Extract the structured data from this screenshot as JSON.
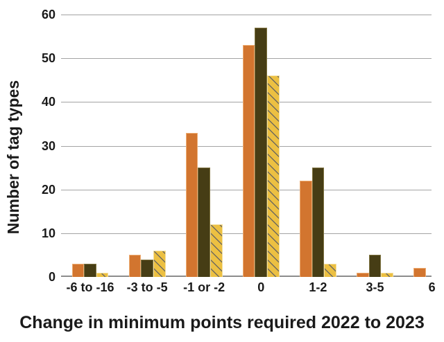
{
  "chart_data": {
    "type": "bar",
    "title": "",
    "xlabel": "Change in minimum points required 2022 to 2023",
    "ylabel": "Number of tag types",
    "categories": [
      "-6 to -16",
      "-3 to -5",
      "-1 or -2",
      "0",
      "1-2",
      "3-5",
      "6"
    ],
    "series": [
      {
        "name": "orange-solid",
        "color": "#D2752F",
        "border_color": "#EDAD74",
        "values": [
          3,
          5,
          33,
          53,
          22,
          1,
          2
        ]
      },
      {
        "name": "dark-olive-solid",
        "color": "#463D15",
        "border_color": "#7E7340",
        "values": [
          3,
          4,
          25,
          57,
          25,
          5,
          null
        ]
      },
      {
        "name": "yellow-diagonal-hatch",
        "color": "#ECC042",
        "border_color": "#F4DF9E",
        "hatch_color": "#6E6A5F",
        "values": [
          1,
          6,
          12,
          46,
          3,
          1,
          null
        ]
      }
    ],
    "ylim": [
      0,
      60
    ],
    "yticks": [
      0,
      10,
      20,
      30,
      40,
      50,
      60
    ],
    "grid": "horizontal",
    "legend": "none",
    "gridline_color": "#A3A3A3",
    "axis_line_color": "#8C8C8C",
    "text_color": "#1A1A1A"
  }
}
